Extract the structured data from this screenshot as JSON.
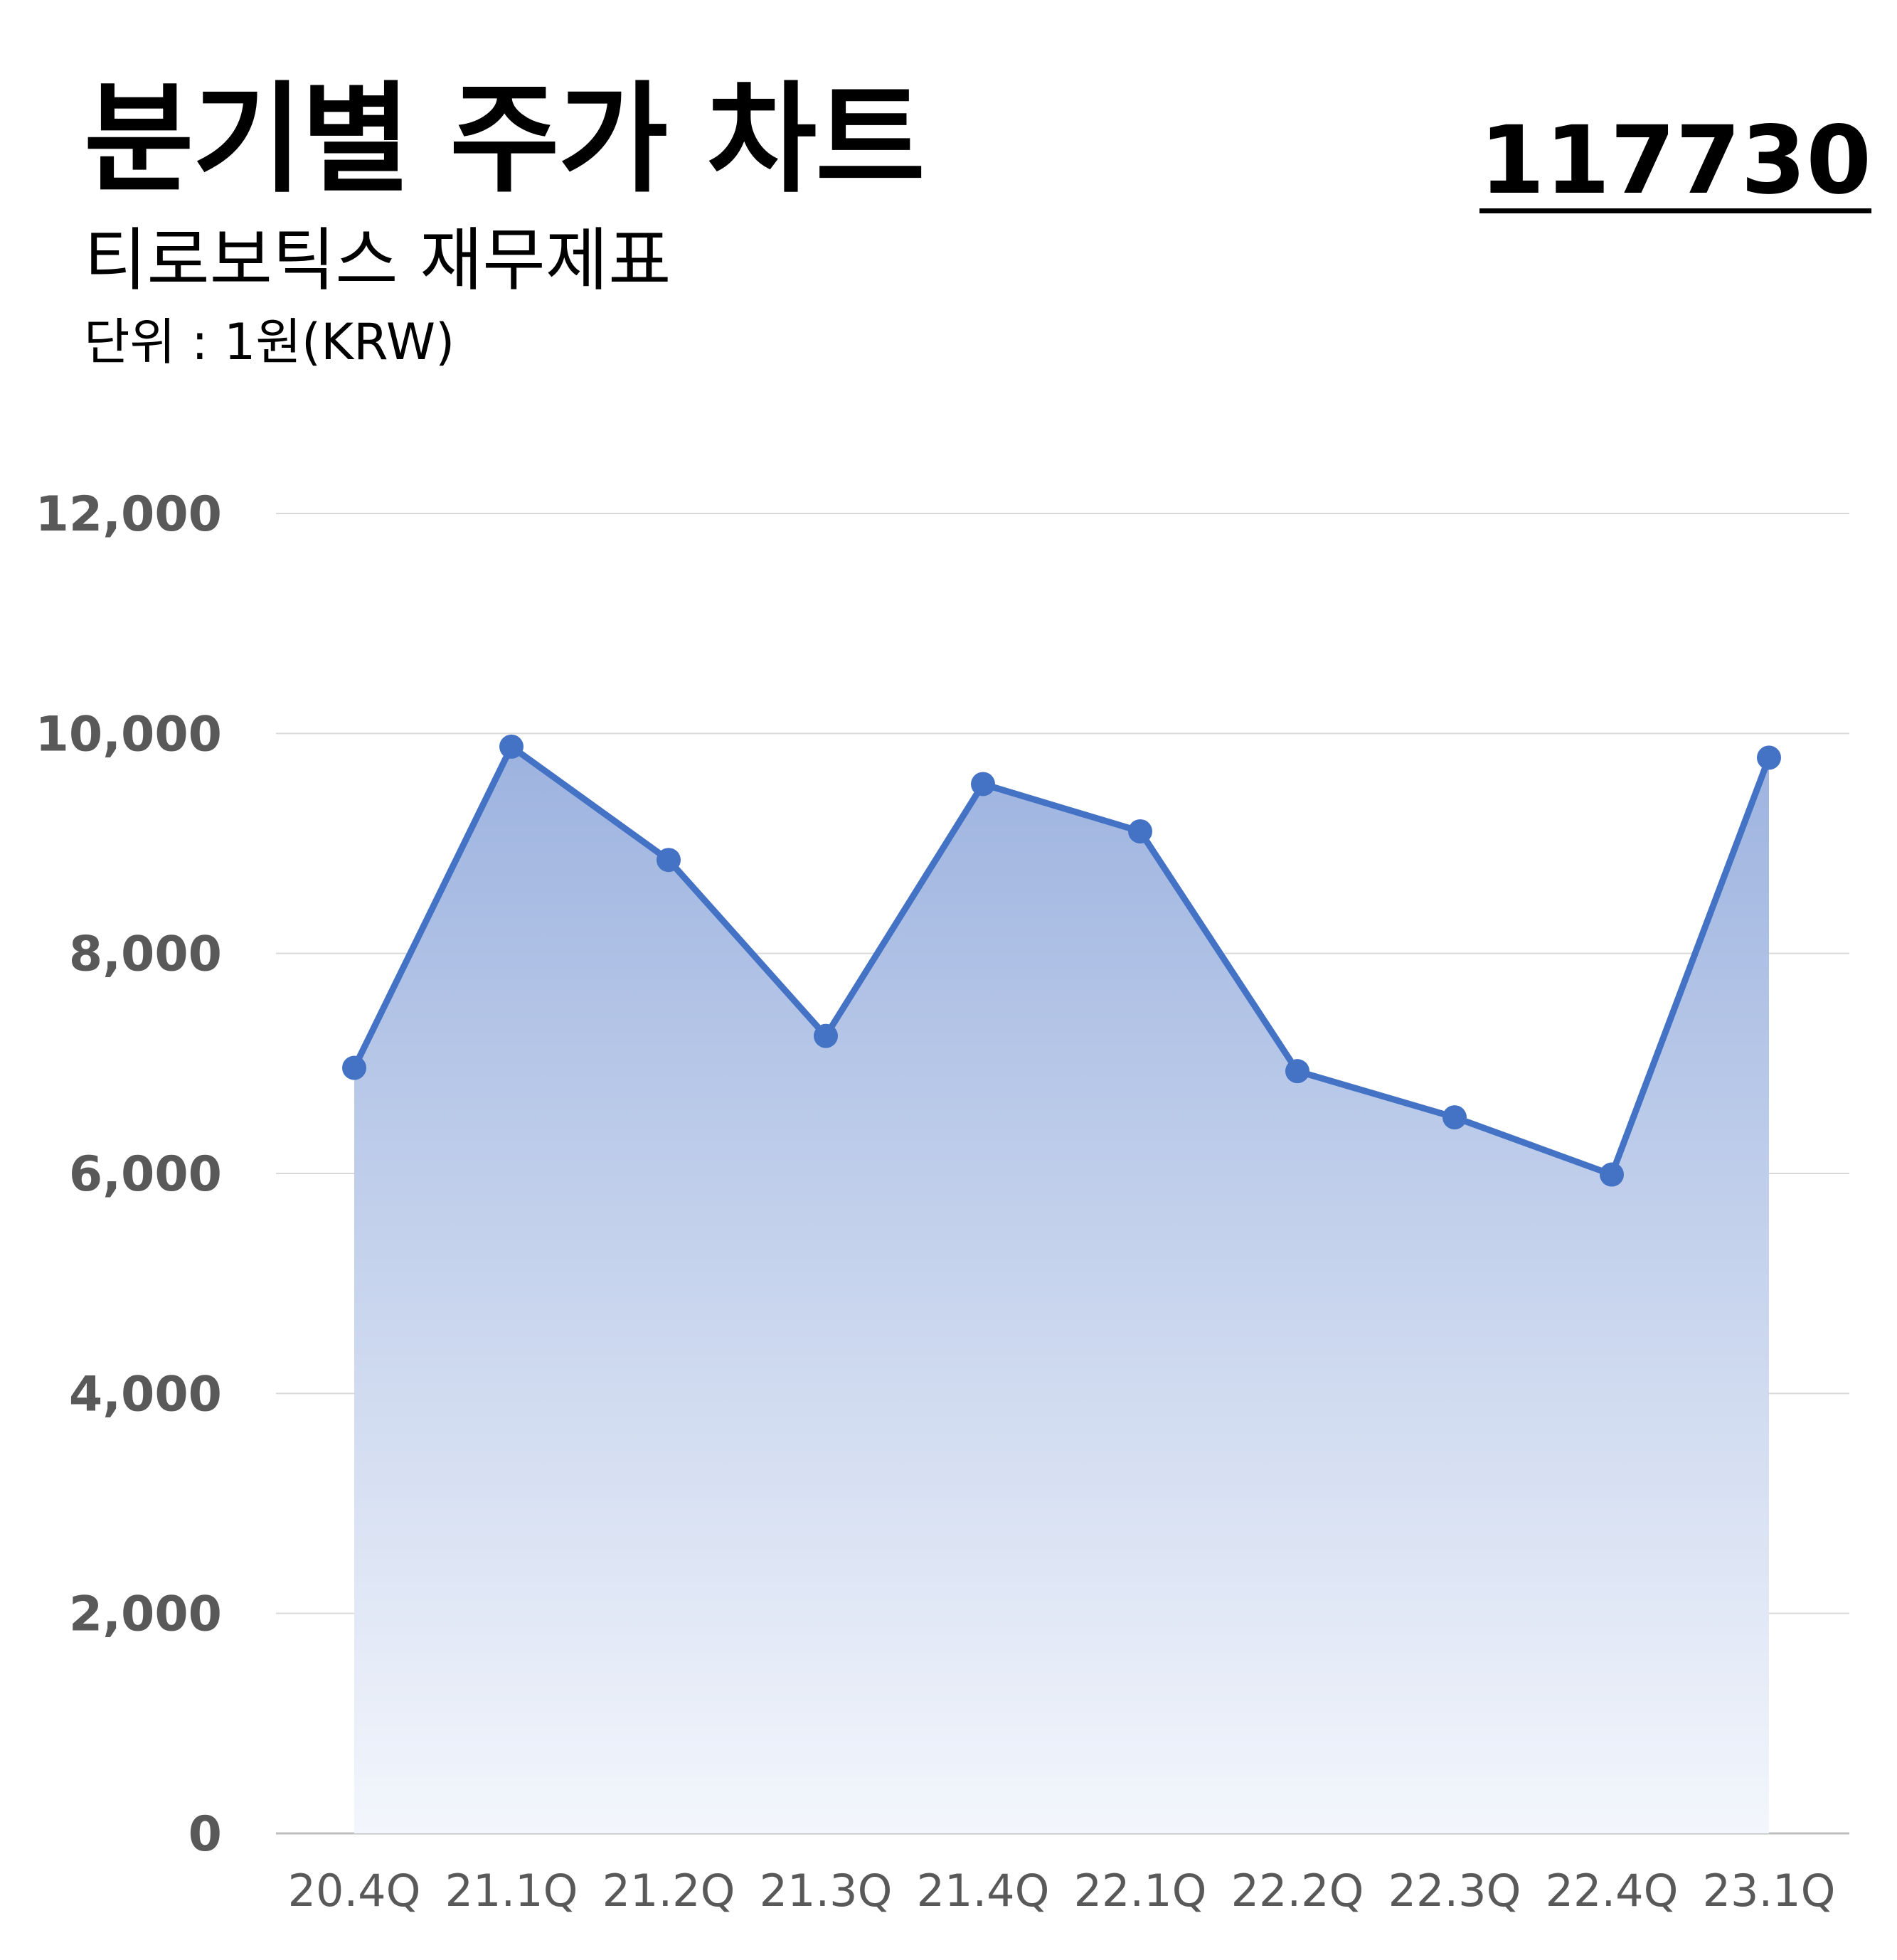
{
  "header": {
    "title": "분기별 주가 차트",
    "stock_code": "117730",
    "subtitle": "티로보틱스 재무제표",
    "unit": "단위 : 1원(KRW)"
  },
  "colors": {
    "line": "#4472c4",
    "fill_top": "#9db3df",
    "fill_bottom": "#f3f6fc",
    "grid": "#d9d9d9",
    "tick_text": "#595959"
  },
  "chart_data": {
    "type": "area",
    "categories": [
      "20.4Q",
      "21.1Q",
      "21.2Q",
      "21.3Q",
      "21.4Q",
      "22.1Q",
      "22.2Q",
      "22.3Q",
      "22.4Q",
      "23.1Q"
    ],
    "values": [
      6960,
      9880,
      8850,
      7250,
      9540,
      9110,
      6930,
      6510,
      5990,
      9780
    ],
    "yticks": [
      "0",
      "2,000",
      "4,000",
      "6,000",
      "8,000",
      "10,000",
      "12,000"
    ],
    "ylim": [
      0,
      12000
    ],
    "grid": true,
    "markers": true
  }
}
